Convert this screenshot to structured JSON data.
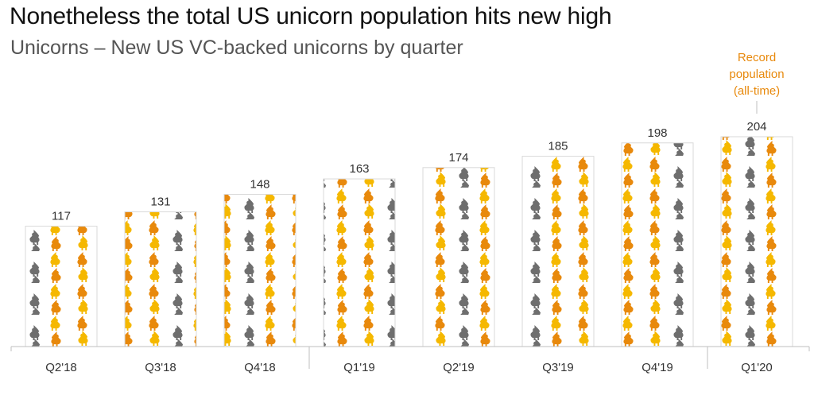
{
  "title": "Nonetheless the total US unicorn population hits new high",
  "subtitle": "Unicorns – New US VC-backed unicorns by quarter",
  "colors": {
    "orange": "#e8890c",
    "gold": "#f5b800",
    "gray": "#6e6e6e",
    "annotation": "#e8890c",
    "bar_border": "#d9d9d9",
    "axis": "#bfbfbf",
    "text": "#333333"
  },
  "chart_data": {
    "type": "bar",
    "title": "Nonetheless the total US unicorn population hits new high",
    "subtitle": "Unicorns – New US VC-backed unicorns by quarter",
    "categories": [
      "Q2'18",
      "Q3'18",
      "Q4'18",
      "Q1'19",
      "Q2'19",
      "Q3'19",
      "Q4'19",
      "Q1'20"
    ],
    "values": [
      117,
      131,
      148,
      163,
      174,
      185,
      198,
      204
    ],
    "value_labels": [
      "117",
      "131",
      "148",
      "163",
      "174",
      "185",
      "198",
      "204"
    ],
    "ylim": [
      0,
      204
    ],
    "grid": false,
    "legend": "none",
    "bar_fill": "unicorn-icon-pattern",
    "annotation": {
      "category": "Q1'20",
      "lines": [
        "Record",
        "population",
        "(all-time)"
      ]
    }
  }
}
